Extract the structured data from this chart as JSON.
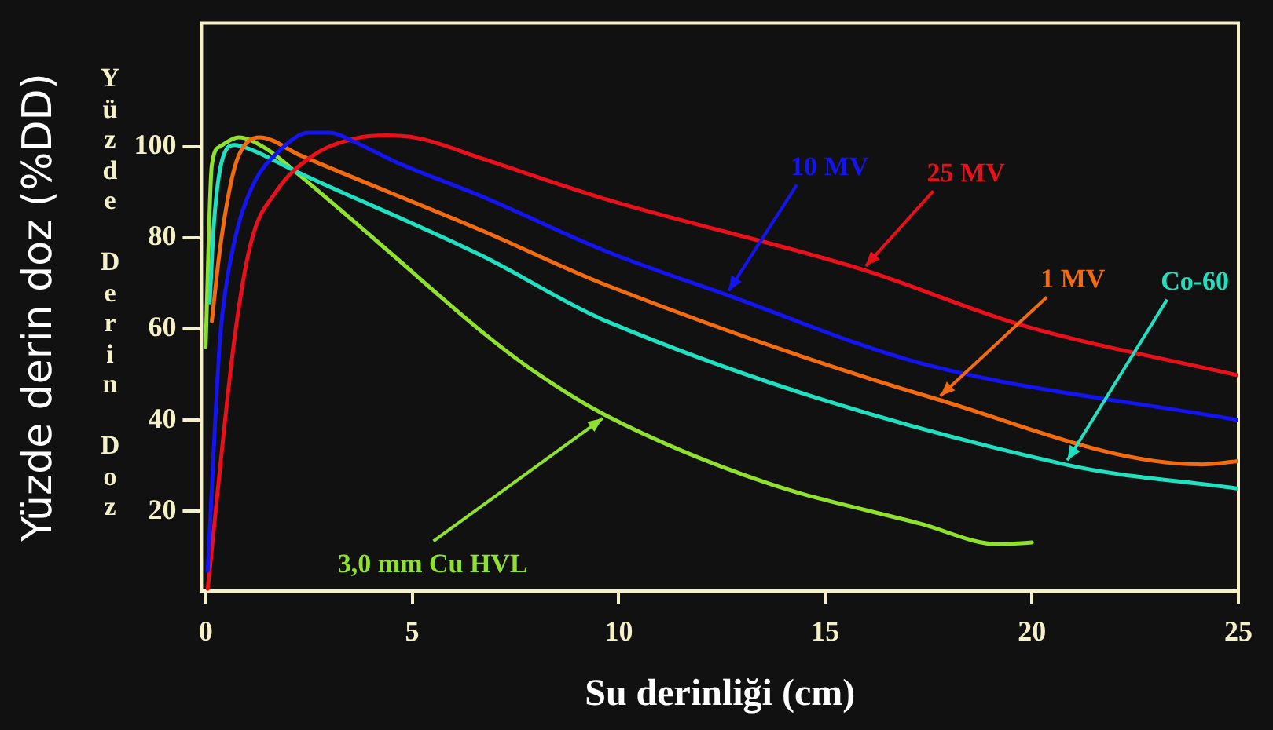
{
  "chart_data": {
    "type": "line",
    "xlabel": "Su derinliği (cm)",
    "ylabel": "Yüzde derin doz (%DD)",
    "annotations": [
      "Yüzde Derin Doz"
    ],
    "xlim": [
      -0.1,
      25
    ],
    "xticks": [
      0,
      5,
      10,
      15,
      20,
      25
    ],
    "ylim": [
      2.5,
      127
    ],
    "yticks": [
      20,
      40,
      60,
      80,
      100
    ],
    "grid": false,
    "legend": false,
    "marker": "none",
    "line_style": "solid",
    "series": [
      {
        "name": "10 MV",
        "color": "#1414f0",
        "x": [
          0.05,
          0.35,
          0.5,
          0.8,
          1.2,
          1.7,
          2.5,
          3.0,
          3.6,
          4.6,
          6.7,
          9.7,
          12.6,
          17.3,
          25
        ],
        "values": [
          7,
          58,
          69.6,
          83,
          92.5,
          98.3,
          103,
          103,
          101,
          96.6,
          89,
          77,
          67.5,
          52.5,
          40
        ]
      },
      {
        "name": "25 MV",
        "color": "#e8101a",
        "x": [
          0.05,
          0.7,
          1.1,
          1.7,
          2.6,
          3.6,
          4.4,
          5.2,
          6.7,
          9.7,
          15.9,
          19.8,
          25
        ],
        "values": [
          3,
          58,
          79,
          90,
          98,
          101.7,
          102.4,
          101.7,
          97.3,
          88.4,
          73,
          60.7,
          49.8
        ]
      },
      {
        "name": "1 MV",
        "color": "#f26b10",
        "x": [
          0.15,
          0.35,
          0.6,
          0.8,
          1.3,
          2.3,
          6.7,
          9.7,
          17.7,
          24.1,
          25
        ],
        "values": [
          61.7,
          77.7,
          91.5,
          98,
          102,
          98,
          81.5,
          69.6,
          44.6,
          30.3,
          31
        ]
      },
      {
        "name": "Co-60",
        "color": "#20e0c0",
        "x": [
          0.1,
          0.2,
          0.4,
          0.7,
          1.1,
          2.1,
          6.7,
          9.7,
          20.8,
          25
        ],
        "values": [
          65.8,
          83,
          97,
          100.3,
          99.3,
          94.9,
          76,
          61.7,
          30.3,
          25
        ]
      },
      {
        "name": "3,0 mm Cu HVL",
        "color": "#90e030",
        "x": [
          0,
          0.15,
          0.35,
          0.8,
          1.5,
          2.1,
          4.2,
          6.7,
          8,
          9.7,
          13.5,
          17.3,
          19.2,
          20
        ],
        "values": [
          56,
          95.9,
          100,
          102,
          99.3,
          95,
          78.8,
          59.3,
          50.4,
          41,
          26.5,
          17.3,
          12.8,
          13.2
        ]
      }
    ]
  }
}
